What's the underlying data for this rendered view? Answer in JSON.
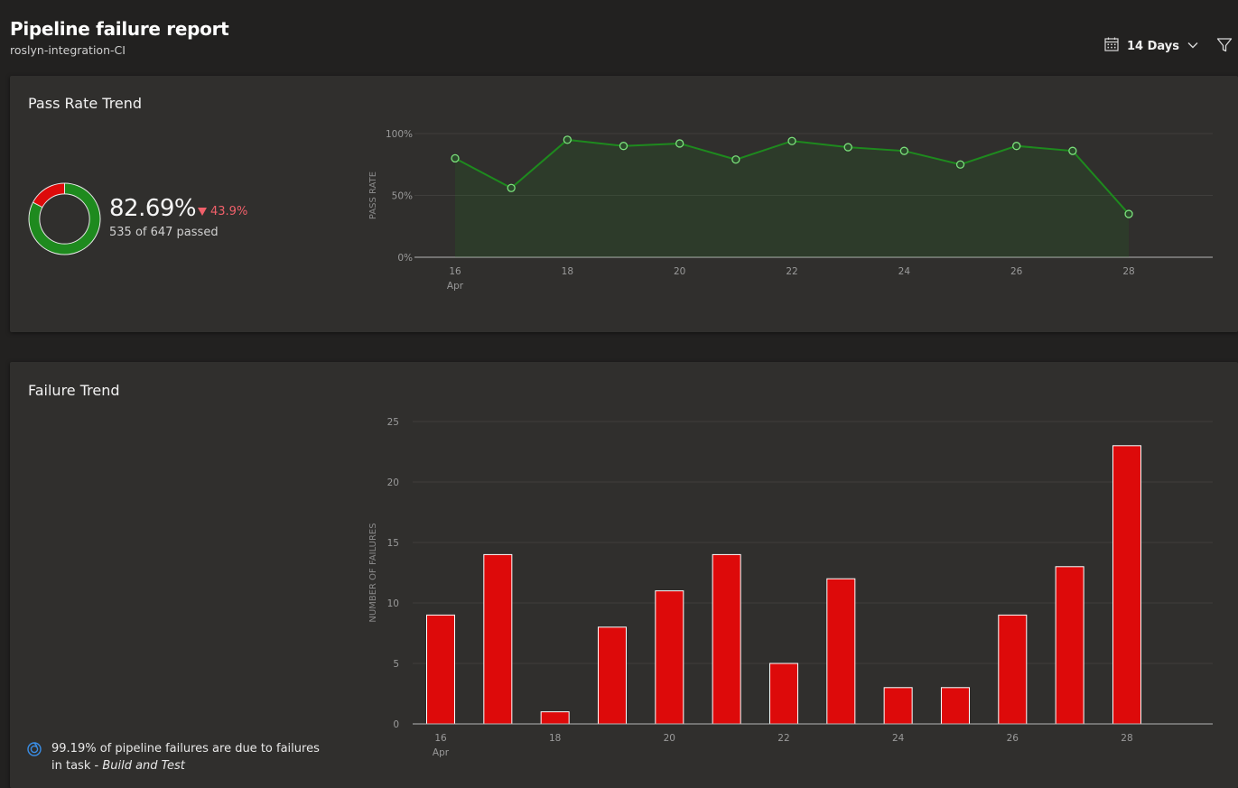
{
  "header": {
    "title": "Pipeline failure report",
    "subtitle": "roslyn-integration-CI",
    "range_label": "14 Days",
    "icons": [
      "calendar-icon",
      "chevron-down-icon",
      "filter-icon"
    ]
  },
  "pass_rate_card": {
    "title": "Pass Rate Trend",
    "kpi_value": "82.69%",
    "kpi_delta": "43.9%",
    "kpi_sub": "535 of 647 passed",
    "donut_passed_fraction": 0.8269,
    "colors": {
      "pass": "#1e8a1e",
      "fail": "#dd0a0a",
      "line": "#1e8a1e",
      "point": "#7be07b"
    }
  },
  "failure_card": {
    "title": "Failure Trend",
    "insight_text": "99.19% of pipeline failures are due to failures in task - ",
    "insight_task": "Build and Test",
    "colors": {
      "bar": "#dd0a0a"
    }
  },
  "chart_data": [
    {
      "type": "area",
      "title": "Pass Rate Trend",
      "ylabel": "PASS RATE",
      "x": [
        16,
        17,
        18,
        19,
        20,
        21,
        22,
        23,
        24,
        25,
        26,
        27,
        28
      ],
      "x_tick_labels": [
        "16",
        "18",
        "20",
        "22",
        "24",
        "26",
        "28"
      ],
      "x_tick_values": [
        16,
        18,
        20,
        22,
        24,
        26,
        28
      ],
      "x_month_label": "Apr",
      "values": [
        80,
        56,
        95,
        90,
        92,
        79,
        94,
        89,
        86,
        75,
        90,
        86,
        35
      ],
      "y_ticks": [
        "0%",
        "50%",
        "100%"
      ],
      "ylim": [
        0,
        100
      ],
      "grid": true
    },
    {
      "type": "bar",
      "title": "Failure Trend",
      "ylabel": "NUMBER OF FAILURES",
      "x": [
        16,
        17,
        18,
        19,
        20,
        21,
        22,
        23,
        24,
        25,
        26,
        27,
        28
      ],
      "x_tick_labels": [
        "16",
        "18",
        "20",
        "22",
        "24",
        "26",
        "28"
      ],
      "x_tick_values": [
        16,
        18,
        20,
        22,
        24,
        26,
        28
      ],
      "x_month_label": "Apr",
      "values": [
        9,
        14,
        1,
        8,
        11,
        14,
        5,
        12,
        3,
        3,
        9,
        13,
        23
      ],
      "y_ticks": [
        "0",
        "5",
        "10",
        "15",
        "20",
        "25"
      ],
      "ylim": [
        0,
        25
      ],
      "grid": true
    }
  ]
}
